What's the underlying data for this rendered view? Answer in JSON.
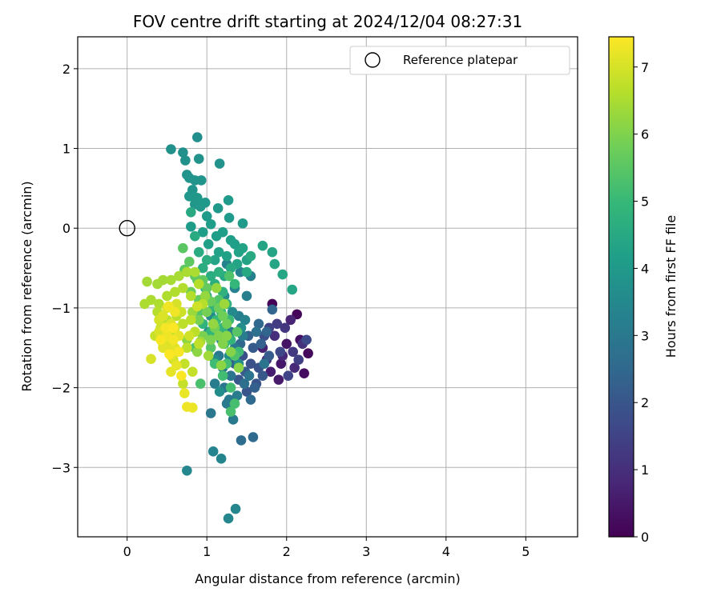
{
  "chart_data": {
    "type": "scatter",
    "title": "FOV centre drift starting at 2024/12/04 08:27:31",
    "xlabel": "Angular distance from reference (arcmin)",
    "ylabel": "Rotation from reference (arcmin)",
    "xlim": [
      -0.62,
      5.65
    ],
    "ylim": [
      -3.87,
      2.4
    ],
    "xticks": [
      0,
      1,
      2,
      3,
      4,
      5
    ],
    "yticks": [
      -3,
      -2,
      -1,
      0,
      1,
      2
    ],
    "grid": true,
    "legend": {
      "placement": "upper-right",
      "entries": [
        "Reference platepar"
      ]
    },
    "reference_point": {
      "x": 0,
      "y": 0
    },
    "colorbar": {
      "label": "Hours from first FF file",
      "colormap": "viridis",
      "range": [
        0,
        7.45
      ],
      "ticks": [
        0,
        1,
        2,
        3,
        4,
        5,
        6,
        7
      ]
    },
    "colormap_stops": [
      "#440154",
      "#482878",
      "#3e4989",
      "#31688e",
      "#26828e",
      "#1f9e89",
      "#35b779",
      "#6ece58",
      "#b5de2b",
      "#fde725"
    ],
    "point_groups": [
      {
        "hours_range": [
          0.0,
          1.8
        ],
        "points": [
          [
            1.82,
            -0.95
          ],
          [
            2.13,
            -1.08
          ],
          [
            2.27,
            -1.57
          ],
          [
            2.22,
            -1.82
          ],
          [
            2.17,
            -1.4
          ],
          [
            2.0,
            -1.45
          ],
          [
            1.93,
            -1.7
          ],
          [
            1.9,
            -1.9
          ],
          [
            1.8,
            -1.8
          ],
          [
            1.7,
            -1.5
          ],
          [
            2.05,
            -1.15
          ],
          [
            1.95,
            -1.6
          ],
          [
            2.1,
            -1.75
          ],
          [
            1.85,
            -1.35
          ],
          [
            2.2,
            -1.45
          ],
          [
            1.75,
            -1.65
          ],
          [
            1.98,
            -1.25
          ],
          [
            2.08,
            -1.55
          ],
          [
            1.88,
            -1.2
          ],
          [
            2.15,
            -1.65
          ],
          [
            1.78,
            -1.25
          ],
          [
            2.02,
            -1.85
          ],
          [
            1.92,
            -1.55
          ],
          [
            2.25,
            -1.4
          ],
          [
            1.72,
            -1.35
          ]
        ]
      },
      {
        "hours_range": [
          1.8,
          2.9
        ],
        "points": [
          [
            1.45,
            -1.6
          ],
          [
            1.55,
            -1.7
          ],
          [
            1.65,
            -1.75
          ],
          [
            1.62,
            -1.95
          ],
          [
            1.5,
            -2.05
          ],
          [
            1.4,
            -1.9
          ],
          [
            1.7,
            -1.85
          ],
          [
            1.58,
            -1.5
          ],
          [
            1.48,
            -1.8
          ],
          [
            1.78,
            -1.6
          ],
          [
            1.35,
            -1.7
          ],
          [
            1.6,
            -2.0
          ],
          [
            1.68,
            -1.45
          ],
          [
            1.52,
            -1.35
          ],
          [
            1.75,
            -1.3
          ],
          [
            1.82,
            -1.02
          ],
          [
            1.65,
            -1.2
          ],
          [
            1.42,
            -1.45
          ],
          [
            1.55,
            -2.15
          ],
          [
            1.58,
            -2.62
          ],
          [
            1.43,
            -2.66
          ],
          [
            1.3,
            -1.85
          ],
          [
            1.47,
            -1.95
          ],
          [
            1.62,
            -1.3
          ],
          [
            1.38,
            -1.55
          ],
          [
            1.53,
            -1.85
          ],
          [
            1.72,
            -1.7
          ]
        ]
      },
      {
        "hours_range": [
          2.9,
          3.7
        ],
        "points": [
          [
            1.3,
            -1.85
          ],
          [
            1.22,
            -2.0
          ],
          [
            1.05,
            -2.32
          ],
          [
            1.15,
            -1.6
          ],
          [
            1.35,
            -1.5
          ],
          [
            1.28,
            -2.15
          ],
          [
            1.33,
            -2.4
          ],
          [
            1.25,
            -2.2
          ],
          [
            1.38,
            -2.1
          ],
          [
            1.1,
            -1.95
          ],
          [
            1.2,
            -1.75
          ],
          [
            1.45,
            -1.35
          ],
          [
            1.3,
            -1.3
          ],
          [
            1.4,
            -1.1
          ],
          [
            1.5,
            -0.85
          ],
          [
            1.55,
            -0.6
          ],
          [
            1.42,
            -0.55
          ],
          [
            1.25,
            -0.45
          ],
          [
            1.35,
            -0.75
          ],
          [
            1.48,
            -1.15
          ],
          [
            1.18,
            -1.4
          ],
          [
            1.08,
            -2.8
          ],
          [
            1.18,
            -2.89
          ],
          [
            1.36,
            -3.52
          ],
          [
            1.27,
            -3.64
          ],
          [
            0.75,
            -3.04
          ],
          [
            1.15,
            -0.95
          ],
          [
            1.05,
            -1.1
          ],
          [
            1.32,
            -1.05
          ],
          [
            1.22,
            -0.85
          ],
          [
            1.1,
            -1.65
          ],
          [
            1.4,
            -1.7
          ],
          [
            1.28,
            -1.6
          ],
          [
            1.16,
            -2.05
          ],
          [
            1.43,
            -1.25
          ],
          [
            1.02,
            -1.3
          ]
        ]
      },
      {
        "hours_range": [
          3.7,
          4.5
        ],
        "points": [
          [
            0.88,
            1.14
          ],
          [
            0.55,
            0.99
          ],
          [
            0.7,
            0.95
          ],
          [
            0.73,
            0.85
          ],
          [
            0.9,
            0.87
          ],
          [
            1.16,
            0.81
          ],
          [
            0.75,
            0.67
          ],
          [
            0.78,
            0.63
          ],
          [
            0.85,
            0.6
          ],
          [
            0.93,
            0.6
          ],
          [
            0.82,
            0.48
          ],
          [
            0.78,
            0.4
          ],
          [
            0.88,
            0.38
          ],
          [
            0.85,
            0.3
          ],
          [
            0.92,
            0.27
          ],
          [
            0.98,
            0.32
          ],
          [
            1.14,
            0.25
          ],
          [
            1.27,
            0.35
          ],
          [
            1.28,
            0.13
          ],
          [
            1.45,
            0.06
          ],
          [
            1.0,
            0.15
          ],
          [
            0.8,
            0.02
          ],
          [
            1.05,
            0.05
          ],
          [
            0.95,
            -0.05
          ],
          [
            1.12,
            -0.1
          ],
          [
            1.2,
            -0.05
          ],
          [
            1.3,
            -0.15
          ],
          [
            1.35,
            -0.2
          ],
          [
            1.02,
            -0.2
          ],
          [
            1.15,
            -0.3
          ],
          [
            1.25,
            -0.35
          ],
          [
            1.4,
            -0.3
          ],
          [
            1.5,
            -0.4
          ],
          [
            1.45,
            -0.25
          ],
          [
            1.1,
            -0.4
          ],
          [
            1.38,
            -0.45
          ],
          [
            1.7,
            -0.22
          ],
          [
            1.82,
            -0.3
          ],
          [
            1.85,
            -0.45
          ],
          [
            1.95,
            -0.58
          ],
          [
            2.07,
            -0.77
          ],
          [
            1.22,
            -0.6
          ],
          [
            1.5,
            -0.55
          ],
          [
            1.3,
            -0.5
          ],
          [
            1.55,
            -0.35
          ]
        ]
      },
      {
        "hours_range": [
          4.5,
          5.5
        ],
        "points": [
          [
            0.8,
            0.2
          ],
          [
            0.85,
            -0.1
          ],
          [
            0.9,
            -0.3
          ],
          [
            0.95,
            -0.5
          ],
          [
            1.0,
            -0.4
          ],
          [
            1.05,
            -0.6
          ],
          [
            1.1,
            -0.7
          ],
          [
            1.15,
            -0.55
          ],
          [
            1.2,
            -0.8
          ],
          [
            1.0,
            -0.85
          ],
          [
            1.08,
            -1.0
          ],
          [
            1.25,
            -0.95
          ],
          [
            0.95,
            -1.2
          ],
          [
            1.05,
            -1.3
          ],
          [
            1.2,
            -1.25
          ],
          [
            1.3,
            -1.4
          ],
          [
            1.35,
            -0.7
          ],
          [
            1.12,
            -1.15
          ],
          [
            0.98,
            -0.75
          ],
          [
            1.18,
            -1.05
          ],
          [
            1.28,
            -1.15
          ],
          [
            1.22,
            -1.45
          ],
          [
            1.4,
            -1.55
          ],
          [
            1.1,
            -1.7
          ],
          [
            1.2,
            -1.85
          ],
          [
            1.25,
            -1.7
          ],
          [
            1.3,
            -2.0
          ],
          [
            1.35,
            -2.2
          ],
          [
            1.3,
            -2.3
          ],
          [
            0.92,
            -1.95
          ],
          [
            0.85,
            -1.5
          ],
          [
            1.35,
            -1.6
          ],
          [
            1.28,
            -0.6
          ],
          [
            0.9,
            -1.05
          ],
          [
            1.15,
            -0.9
          ],
          [
            1.05,
            -1.5
          ],
          [
            1.38,
            -1.3
          ],
          [
            0.88,
            -0.65
          ]
        ]
      },
      {
        "hours_range": [
          5.5,
          6.4
        ],
        "points": [
          [
            0.7,
            -0.25
          ],
          [
            0.78,
            -0.42
          ],
          [
            0.72,
            -0.52
          ],
          [
            0.85,
            -0.6
          ],
          [
            0.95,
            -0.65
          ],
          [
            1.0,
            -0.75
          ],
          [
            0.9,
            -0.9
          ],
          [
            0.8,
            -0.8
          ],
          [
            1.05,
            -0.92
          ],
          [
            1.15,
            -1.0
          ],
          [
            1.2,
            -1.1
          ],
          [
            1.25,
            -1.2
          ],
          [
            1.1,
            -1.25
          ],
          [
            1.0,
            -1.05
          ],
          [
            0.9,
            -1.15
          ],
          [
            0.95,
            -1.35
          ],
          [
            1.05,
            -1.4
          ],
          [
            0.85,
            -1.3
          ],
          [
            1.15,
            -1.35
          ],
          [
            1.2,
            -1.45
          ],
          [
            1.3,
            -1.55
          ],
          [
            1.25,
            -1.35
          ],
          [
            1.4,
            -1.75
          ],
          [
            1.18,
            -1.72
          ],
          [
            0.88,
            -1.55
          ],
          [
            0.75,
            -1.4
          ],
          [
            1.08,
            -1.2
          ],
          [
            0.98,
            -0.85
          ],
          [
            1.12,
            -0.75
          ],
          [
            0.82,
            -1.05
          ],
          [
            1.22,
            -0.95
          ],
          [
            0.92,
            -1.42
          ],
          [
            1.02,
            -1.6
          ]
        ]
      },
      {
        "hours_range": [
          6.4,
          7.0
        ],
        "points": [
          [
            0.25,
            -0.67
          ],
          [
            0.38,
            -0.7
          ],
          [
            0.45,
            -0.65
          ],
          [
            0.55,
            -0.65
          ],
          [
            0.65,
            -0.6
          ],
          [
            0.75,
            -0.55
          ],
          [
            0.85,
            -0.55
          ],
          [
            0.22,
            -0.95
          ],
          [
            0.3,
            -0.9
          ],
          [
            0.4,
            -0.95
          ],
          [
            0.5,
            -0.85
          ],
          [
            0.6,
            -0.8
          ],
          [
            0.7,
            -0.75
          ],
          [
            0.8,
            -0.85
          ],
          [
            0.9,
            -0.7
          ],
          [
            0.95,
            -0.95
          ],
          [
            0.38,
            -1.05
          ],
          [
            0.5,
            -1.15
          ],
          [
            0.62,
            -1.1
          ],
          [
            0.7,
            -1.2
          ],
          [
            0.8,
            -1.15
          ],
          [
            0.85,
            -1.3
          ],
          [
            0.9,
            -1.45
          ],
          [
            0.75,
            -1.5
          ],
          [
            0.65,
            -1.55
          ],
          [
            0.72,
            -1.7
          ],
          [
            0.82,
            -1.8
          ],
          [
            0.7,
            -1.95
          ],
          [
            0.35,
            -1.35
          ],
          [
            0.45,
            -1.45
          ],
          [
            0.55,
            -1.35
          ],
          [
            0.42,
            -1.25
          ],
          [
            0.6,
            -1.25
          ],
          [
            0.68,
            -1.05
          ],
          [
            0.88,
            -0.98
          ],
          [
            0.78,
            -1.35
          ],
          [
            0.58,
            -1.65
          ],
          [
            0.52,
            -1.52
          ],
          [
            0.4,
            -1.15
          ],
          [
            0.62,
            -0.95
          ]
        ]
      },
      {
        "hours_range": [
          7.0,
          7.45
        ],
        "points": [
          [
            0.3,
            -1.64
          ],
          [
            0.4,
            -1.3
          ],
          [
            0.45,
            -1.1
          ],
          [
            0.5,
            -1.0
          ],
          [
            0.55,
            -1.2
          ],
          [
            0.5,
            -1.45
          ],
          [
            0.45,
            -1.5
          ],
          [
            0.55,
            -1.6
          ],
          [
            0.6,
            -1.5
          ],
          [
            0.65,
            -1.35
          ],
          [
            0.55,
            -1.8
          ],
          [
            0.62,
            -1.72
          ],
          [
            0.72,
            -2.07
          ],
          [
            0.82,
            -2.25
          ],
          [
            0.75,
            -2.24
          ],
          [
            0.5,
            -1.35
          ],
          [
            0.6,
            -1.05
          ],
          [
            0.52,
            -0.98
          ],
          [
            0.58,
            -1.4
          ],
          [
            0.48,
            -1.25
          ],
          [
            0.65,
            -1.55
          ],
          [
            0.42,
            -1.4
          ],
          [
            0.68,
            -1.85
          ],
          [
            0.58,
            -1.25
          ],
          [
            0.53,
            -1.58
          ]
        ]
      }
    ]
  }
}
